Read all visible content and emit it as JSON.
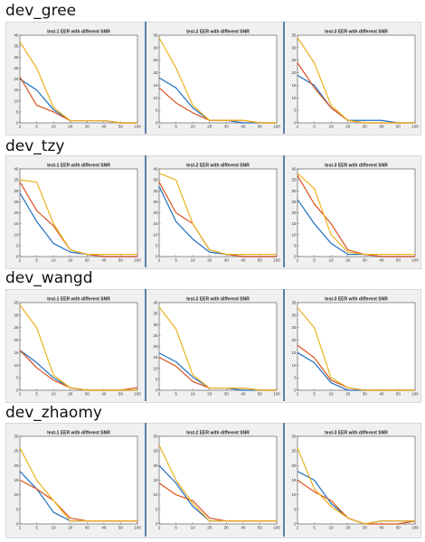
{
  "groups": [
    {
      "title": "dev_gree"
    },
    {
      "title": "dev_tzy"
    },
    {
      "title": "dev_wangd"
    },
    {
      "title": "dev_zhaomy"
    }
  ],
  "colors": {
    "blue": "#1f6fc0",
    "red": "#d9531e",
    "yellow": "#edb120"
  },
  "chart_data": [
    {
      "type": "line",
      "group": "dev_gree",
      "title": "test-1 EER with different SNR",
      "categories": [
        "2",
        "5",
        "10",
        "20",
        "30",
        "40",
        "50",
        "100"
      ],
      "yticks": [
        0,
        5,
        10,
        15,
        20,
        25,
        30,
        35,
        40
      ],
      "ylim": [
        0,
        40
      ],
      "series": [
        {
          "color": "blue",
          "values": [
            20,
            15,
            6,
            1,
            1,
            1,
            0,
            0
          ]
        },
        {
          "color": "red",
          "values": [
            21,
            8,
            5,
            1,
            1,
            1,
            0,
            0
          ]
        },
        {
          "color": "yellow",
          "values": [
            37,
            25,
            7,
            1,
            1,
            1,
            0,
            0
          ]
        }
      ]
    },
    {
      "type": "line",
      "group": "dev_gree",
      "title": "test-2 EER with different SNR",
      "categories": [
        "2",
        "5",
        "10",
        "20",
        "30",
        "40",
        "50",
        "100"
      ],
      "yticks": [
        0,
        5,
        10,
        15,
        20,
        25,
        30,
        35
      ],
      "ylim": [
        0,
        35
      ],
      "series": [
        {
          "color": "blue",
          "values": [
            18,
            14,
            6,
            1,
            1,
            0,
            0,
            0
          ]
        },
        {
          "color": "red",
          "values": [
            14,
            8,
            4,
            1,
            1,
            1,
            0,
            0
          ]
        },
        {
          "color": "yellow",
          "values": [
            34,
            22,
            7,
            1,
            1,
            1,
            0,
            0
          ]
        }
      ]
    },
    {
      "type": "line",
      "group": "dev_gree",
      "title": "test-3 EER with different SNR",
      "categories": [
        "2",
        "5",
        "10",
        "20",
        "30",
        "40",
        "50",
        "100"
      ],
      "yticks": [
        0,
        5,
        10,
        15,
        20,
        25,
        30,
        35
      ],
      "ylim": [
        0,
        35
      ],
      "series": [
        {
          "color": "blue",
          "values": [
            19,
            15,
            6,
            1,
            1,
            1,
            0,
            0
          ]
        },
        {
          "color": "red",
          "values": [
            24,
            14,
            6,
            1,
            0,
            0,
            0,
            0
          ]
        },
        {
          "color": "yellow",
          "values": [
            34,
            24,
            7,
            1,
            0,
            0,
            0,
            0
          ]
        }
      ]
    },
    {
      "type": "line",
      "group": "dev_tzy",
      "title": "test-1 EER with different SNR",
      "categories": [
        "2",
        "5",
        "10",
        "20",
        "30",
        "40",
        "50",
        "100"
      ],
      "yticks": [
        0,
        5,
        10,
        15,
        20,
        25,
        30,
        35,
        40
      ],
      "ylim": [
        0,
        40
      ],
      "series": [
        {
          "color": "blue",
          "values": [
            29,
            16,
            6,
            2,
            1,
            0,
            0,
            0
          ]
        },
        {
          "color": "red",
          "values": [
            34,
            21,
            14,
            3,
            1,
            0,
            0,
            0
          ]
        },
        {
          "color": "yellow",
          "values": [
            35,
            34,
            15,
            3,
            1,
            1,
            1,
            1
          ]
        }
      ]
    },
    {
      "type": "line",
      "group": "dev_tzy",
      "title": "test-2 EER with different SNR",
      "categories": [
        "2",
        "5",
        "10",
        "20",
        "30",
        "40",
        "50",
        "100"
      ],
      "yticks": [
        0,
        5,
        10,
        15,
        20,
        25,
        30,
        35,
        40
      ],
      "ylim": [
        0,
        40
      ],
      "series": [
        {
          "color": "blue",
          "values": [
            32,
            16,
            8,
            2,
            1,
            0,
            0,
            0
          ]
        },
        {
          "color": "red",
          "values": [
            34,
            20,
            15,
            3,
            1,
            0,
            0,
            0
          ]
        },
        {
          "color": "yellow",
          "values": [
            38,
            35,
            15,
            3,
            1,
            1,
            1,
            1
          ]
        }
      ]
    },
    {
      "type": "line",
      "group": "dev_tzy",
      "title": "test-3 EER with different SNR",
      "categories": [
        "2",
        "5",
        "10",
        "20",
        "30",
        "40",
        "50",
        "100"
      ],
      "yticks": [
        0,
        5,
        10,
        15,
        20,
        25,
        30,
        35,
        40
      ],
      "ylim": [
        0,
        40
      ],
      "series": [
        {
          "color": "blue",
          "values": [
            26,
            15,
            6,
            1,
            1,
            0,
            0,
            0
          ]
        },
        {
          "color": "red",
          "values": [
            37,
            24,
            15,
            3,
            1,
            0,
            0,
            0
          ]
        },
        {
          "color": "yellow",
          "values": [
            38,
            31,
            10,
            2,
            1,
            1,
            1,
            1
          ]
        }
      ]
    },
    {
      "type": "line",
      "group": "dev_wangd",
      "title": "test-1 EER with different SNR",
      "categories": [
        "2",
        "5",
        "10",
        "20",
        "30",
        "40",
        "50",
        "100"
      ],
      "yticks": [
        0,
        5,
        10,
        15,
        20,
        25,
        30,
        35
      ],
      "ylim": [
        0,
        35
      ],
      "series": [
        {
          "color": "blue",
          "values": [
            16,
            11,
            5,
            1,
            0,
            0,
            0,
            0
          ]
        },
        {
          "color": "red",
          "values": [
            16,
            9,
            4,
            1,
            0,
            0,
            0,
            1
          ]
        },
        {
          "color": "yellow",
          "values": [
            34,
            25,
            6,
            1,
            0,
            0,
            0,
            0
          ]
        }
      ]
    },
    {
      "type": "line",
      "group": "dev_wangd",
      "title": "test-2 EER with different SNR",
      "categories": [
        "2",
        "5",
        "10",
        "20",
        "30",
        "40",
        "50",
        "100"
      ],
      "yticks": [
        0,
        5,
        10,
        15,
        20,
        25,
        30,
        35,
        40
      ],
      "ylim": [
        0,
        40
      ],
      "series": [
        {
          "color": "blue",
          "values": [
            17,
            13,
            6,
            1,
            1,
            0,
            0,
            0
          ]
        },
        {
          "color": "red",
          "values": [
            15,
            11,
            4,
            1,
            1,
            1,
            0,
            0
          ]
        },
        {
          "color": "yellow",
          "values": [
            38,
            28,
            7,
            1,
            1,
            1,
            0,
            0
          ]
        }
      ]
    },
    {
      "type": "line",
      "group": "dev_wangd",
      "title": "test-3 EER with different SNR",
      "categories": [
        "2",
        "5",
        "10",
        "20",
        "30",
        "40",
        "50",
        "100"
      ],
      "yticks": [
        0,
        5,
        10,
        15,
        20,
        25,
        30,
        35
      ],
      "ylim": [
        0,
        35
      ],
      "series": [
        {
          "color": "blue",
          "values": [
            15,
            11,
            3,
            0,
            0,
            0,
            0,
            0
          ]
        },
        {
          "color": "red",
          "values": [
            18,
            13,
            4,
            1,
            0,
            0,
            0,
            0
          ]
        },
        {
          "color": "yellow",
          "values": [
            33,
            25,
            5,
            1,
            0,
            0,
            0,
            0
          ]
        }
      ]
    },
    {
      "type": "line",
      "group": "dev_zhaomy",
      "title": "test-1 EER with different SNR",
      "categories": [
        "2",
        "5",
        "10",
        "20",
        "30",
        "40",
        "50",
        "100"
      ],
      "yticks": [
        0,
        5,
        10,
        15,
        20,
        25,
        30
      ],
      "ylim": [
        0,
        30
      ],
      "series": [
        {
          "color": "blue",
          "values": [
            18,
            12,
            4,
            1,
            1,
            1,
            1,
            1
          ]
        },
        {
          "color": "red",
          "values": [
            15,
            12,
            8,
            2,
            1,
            1,
            1,
            1
          ]
        },
        {
          "color": "yellow",
          "values": [
            26,
            15,
            8,
            1,
            1,
            1,
            1,
            1
          ]
        }
      ]
    },
    {
      "type": "line",
      "group": "dev_zhaomy",
      "title": "test-2 EER with different SNR",
      "categories": [
        "2",
        "5",
        "10",
        "20",
        "30",
        "40",
        "50",
        "100"
      ],
      "yticks": [
        0,
        5,
        10,
        15,
        20,
        25,
        30
      ],
      "ylim": [
        0,
        30
      ],
      "series": [
        {
          "color": "blue",
          "values": [
            20,
            14,
            6,
            1,
            1,
            1,
            1,
            1
          ]
        },
        {
          "color": "red",
          "values": [
            14,
            10,
            8,
            2,
            1,
            1,
            1,
            1
          ]
        },
        {
          "color": "yellow",
          "values": [
            27,
            15,
            7,
            1,
            1,
            1,
            1,
            1
          ]
        }
      ]
    },
    {
      "type": "line",
      "group": "dev_zhaomy",
      "title": "test-3 EER with different SNR",
      "categories": [
        "2",
        "5",
        "10",
        "20",
        "30",
        "40",
        "50",
        "100"
      ],
      "yticks": [
        0,
        5,
        10,
        15,
        20,
        25,
        30
      ],
      "ylim": [
        0,
        30
      ],
      "series": [
        {
          "color": "blue",
          "values": [
            18,
            15,
            7,
            2,
            0,
            1,
            1,
            1
          ]
        },
        {
          "color": "red",
          "values": [
            15,
            11,
            8,
            2,
            0,
            0,
            0,
            1
          ]
        },
        {
          "color": "yellow",
          "values": [
            26,
            12,
            6,
            2,
            0,
            1,
            1,
            1
          ]
        }
      ]
    }
  ]
}
